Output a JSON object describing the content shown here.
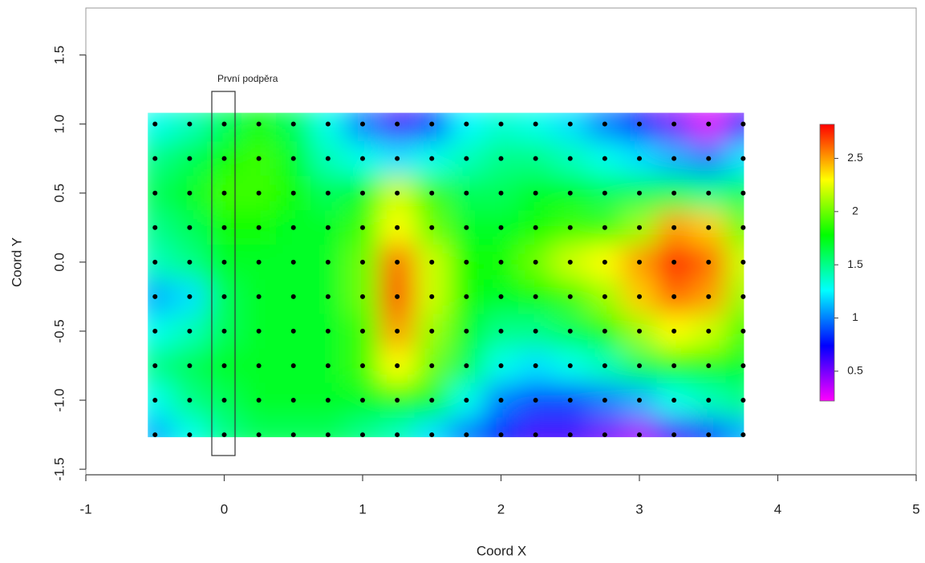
{
  "chart_data": {
    "type": "heatmap",
    "x_label": "Coord X",
    "y_label": "Coord Y",
    "annotation": "První podpěra",
    "xlim": [
      -1,
      5
    ],
    "ylim": [
      -1.54,
      1.84
    ],
    "xticks": [
      -1,
      0,
      1,
      2,
      3,
      4,
      5
    ],
    "yticks": [
      {
        "value": -1.5,
        "label": "-1.5"
      },
      {
        "value": -1.0,
        "label": "-1.0"
      },
      -0.5,
      {
        "value": 0.0,
        "label": "0.0"
      },
      0.5,
      {
        "value": 1.0,
        "label": "1.0"
      },
      1.5
    ],
    "x": [
      -0.5,
      -0.25,
      0,
      0.25,
      0.5,
      0.75,
      1.0,
      1.25,
      1.5,
      1.75,
      2.0,
      2.25,
      2.5,
      2.75,
      3.0,
      3.25,
      3.5,
      3.75
    ],
    "y": [
      1.0,
      0.75,
      0.5,
      0.25,
      0.0,
      -0.25,
      -0.5,
      -0.75,
      -1.0,
      -1.25
    ],
    "z": [
      [
        1.3,
        1.4,
        1.6,
        1.8,
        1.6,
        1.3,
        1.0,
        0.6,
        0.9,
        1.25,
        1.35,
        1.3,
        1.2,
        1.0,
        0.8,
        0.5,
        0.3,
        0.6
      ],
      [
        1.5,
        1.6,
        1.8,
        1.9,
        1.7,
        1.4,
        1.3,
        1.2,
        1.3,
        1.4,
        1.5,
        1.5,
        1.4,
        1.3,
        1.2,
        1.1,
        1.0,
        1.2
      ],
      [
        1.6,
        1.7,
        1.9,
        1.9,
        1.8,
        1.6,
        1.7,
        2.2,
        1.9,
        1.6,
        1.6,
        1.7,
        1.7,
        1.6,
        1.6,
        1.6,
        1.5,
        1.6
      ],
      [
        1.5,
        1.6,
        1.8,
        1.8,
        1.7,
        1.7,
        1.9,
        2.3,
        2.0,
        1.7,
        1.7,
        1.8,
        1.9,
        1.9,
        2.1,
        2.5,
        2.4,
        2.0
      ],
      [
        1.4,
        1.5,
        1.7,
        1.7,
        1.7,
        1.7,
        2.0,
        2.6,
        2.2,
        1.8,
        1.8,
        2.0,
        2.2,
        2.3,
        2.5,
        2.75,
        2.6,
        2.2
      ],
      [
        1.1,
        1.2,
        1.6,
        1.7,
        1.7,
        1.7,
        2.0,
        2.65,
        2.2,
        1.8,
        1.7,
        1.8,
        1.9,
        2.1,
        2.4,
        2.6,
        2.5,
        2.1
      ],
      [
        1.3,
        1.4,
        1.6,
        1.7,
        1.7,
        1.7,
        1.9,
        2.5,
        2.1,
        1.7,
        1.5,
        1.5,
        1.6,
        1.8,
        2.1,
        2.3,
        2.2,
        1.9
      ],
      [
        1.5,
        1.6,
        1.7,
        1.7,
        1.7,
        1.7,
        1.9,
        2.3,
        2.0,
        1.6,
        1.3,
        1.2,
        1.3,
        1.4,
        1.6,
        1.8,
        1.8,
        1.7
      ],
      [
        1.3,
        1.5,
        1.6,
        1.7,
        1.7,
        1.7,
        1.7,
        1.8,
        1.7,
        1.3,
        1.0,
        0.9,
        0.9,
        1.0,
        1.1,
        1.3,
        1.4,
        1.5
      ],
      [
        1.1,
        1.3,
        1.5,
        1.6,
        1.6,
        1.6,
        1.5,
        1.4,
        1.2,
        1.0,
        0.8,
        0.6,
        0.6,
        0.5,
        0.4,
        0.6,
        0.9,
        1.1
      ]
    ],
    "zlim": [
      0.22,
      2.82
    ],
    "colorbar_ticks": [
      0.5,
      1,
      1.5,
      2,
      2.5
    ],
    "colorscale": [
      "#ff00ff",
      "#0000ff",
      "#00ffff",
      "#00ff00",
      "#ffff00",
      "#ff0000"
    ],
    "point_color": "#000000"
  }
}
